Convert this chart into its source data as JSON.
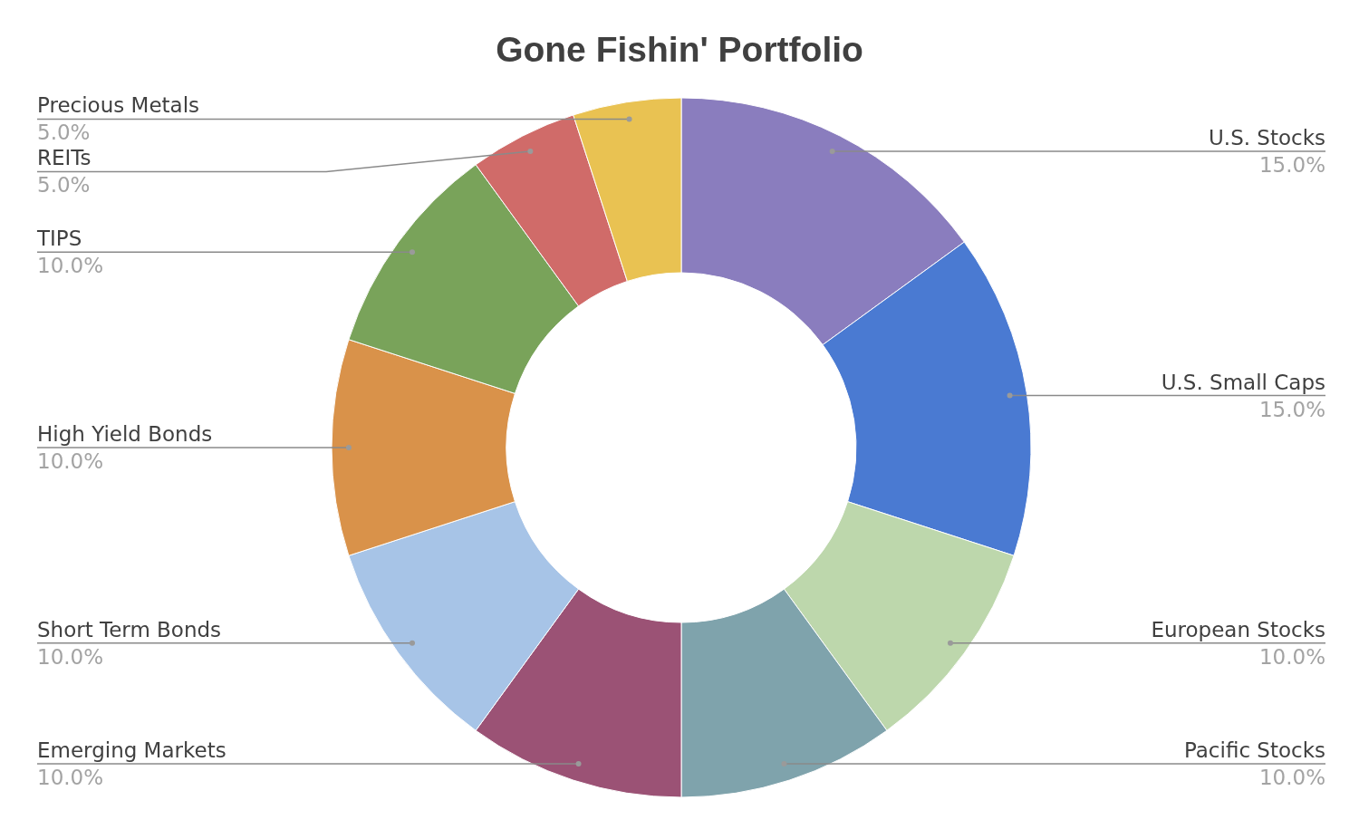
{
  "chart_data": {
    "type": "donut",
    "title": "Gone Fishin' Portfolio",
    "categories": [
      "U.S. Stocks",
      "U.S. Small Caps",
      "European Stocks",
      "Pacific Stocks",
      "Emerging Markets",
      "Short Term Bonds",
      "High Yield Bonds",
      "TIPS",
      "REITs",
      "Precious Metals"
    ],
    "values": [
      15,
      15,
      10,
      10,
      10,
      10,
      10,
      10,
      5,
      5
    ],
    "colors": [
      "#8a7dbe",
      "#4a7ad2",
      "#bdd7ac",
      "#7fa3ac",
      "#9b5275",
      "#a7c4e7",
      "#d9924a",
      "#79a35a",
      "#d06b69",
      "#e9c252"
    ],
    "value_labels": [
      "15.0%",
      "15.0%",
      "10.0%",
      "10.0%",
      "10.0%",
      "10.0%",
      "10.0%",
      "10.0%",
      "5.0%",
      "5.0%"
    ]
  }
}
